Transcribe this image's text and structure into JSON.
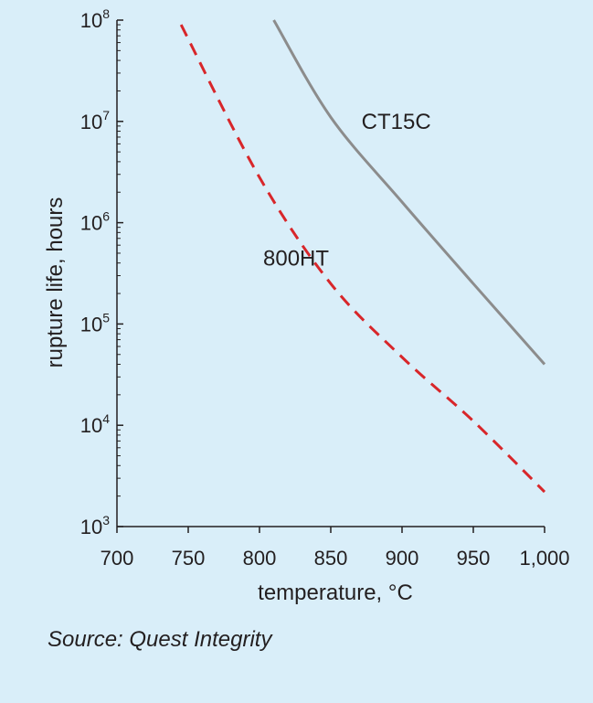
{
  "chart_data": {
    "type": "line",
    "xlabel": "temperature, °C",
    "ylabel": "rupture life, hours",
    "xlim": [
      700,
      1000
    ],
    "ylim_log10": [
      3,
      8
    ],
    "y_scale": "log",
    "x_ticks": [
      700,
      750,
      800,
      850,
      900,
      950,
      1000
    ],
    "x_tick_labels": [
      "700",
      "750",
      "800",
      "850",
      "900",
      "950",
      "1,000"
    ],
    "y_ticks_log10": [
      3,
      4,
      5,
      6,
      7,
      8
    ],
    "y_tick_base": "10",
    "y_tick_exponents": [
      "3",
      "4",
      "5",
      "6",
      "7",
      "8"
    ],
    "grid": false,
    "series": [
      {
        "name": "CT15C",
        "color": "#8c8c8c",
        "dash": "solid",
        "x": [
          810,
          850,
          900,
          950,
          1000
        ],
        "y": [
          100000000,
          11000000,
          1600000,
          250000,
          40000
        ]
      },
      {
        "name": "800HT",
        "color": "#d8262a",
        "dash": "dashed",
        "x": [
          745,
          800,
          850,
          900,
          950,
          1000
        ],
        "y": [
          90000000,
          2800000,
          250000,
          47000,
          11000,
          2200
        ]
      }
    ]
  },
  "source": "Source: Quest Integrity",
  "colors": {
    "background": "#d9eef9",
    "axis": "#231f20"
  }
}
